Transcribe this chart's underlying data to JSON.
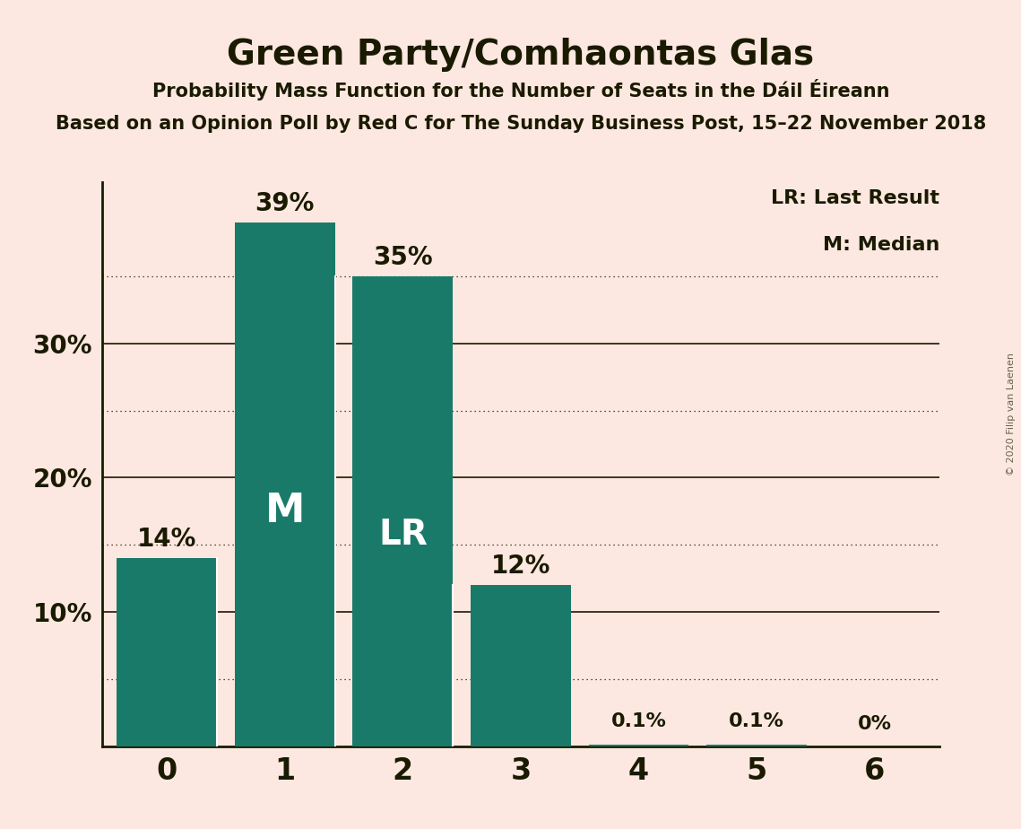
{
  "title": "Green Party/Comhaontas Glas",
  "subtitle1": "Probability Mass Function for the Number of Seats in the Dáil Éireann",
  "subtitle2_full": "Based on an Opinion Poll by Red C for The Sunday Business Post, 15–22 November 2018",
  "copyright": "© 2020 Filip van Laenen",
  "categories": [
    0,
    1,
    2,
    3,
    4,
    5,
    6
  ],
  "values": [
    14.0,
    39.0,
    35.0,
    12.0,
    0.1,
    0.1,
    0.0
  ],
  "value_labels": [
    "14%",
    "39%",
    "35%",
    "12%",
    "0.1%",
    "0.1%",
    "0%"
  ],
  "bar_color": "#1a7a6a",
  "background_color": "#fce8e0",
  "text_color": "#1a1a00",
  "ylim": [
    0,
    42
  ],
  "dotted_grid_values": [
    5,
    15,
    25,
    35
  ],
  "solid_grid_values": [
    10,
    20,
    30
  ],
  "median_bar": 1,
  "lr_bar": 2,
  "legend_lr": "LR: Last Result",
  "legend_m": "M: Median"
}
